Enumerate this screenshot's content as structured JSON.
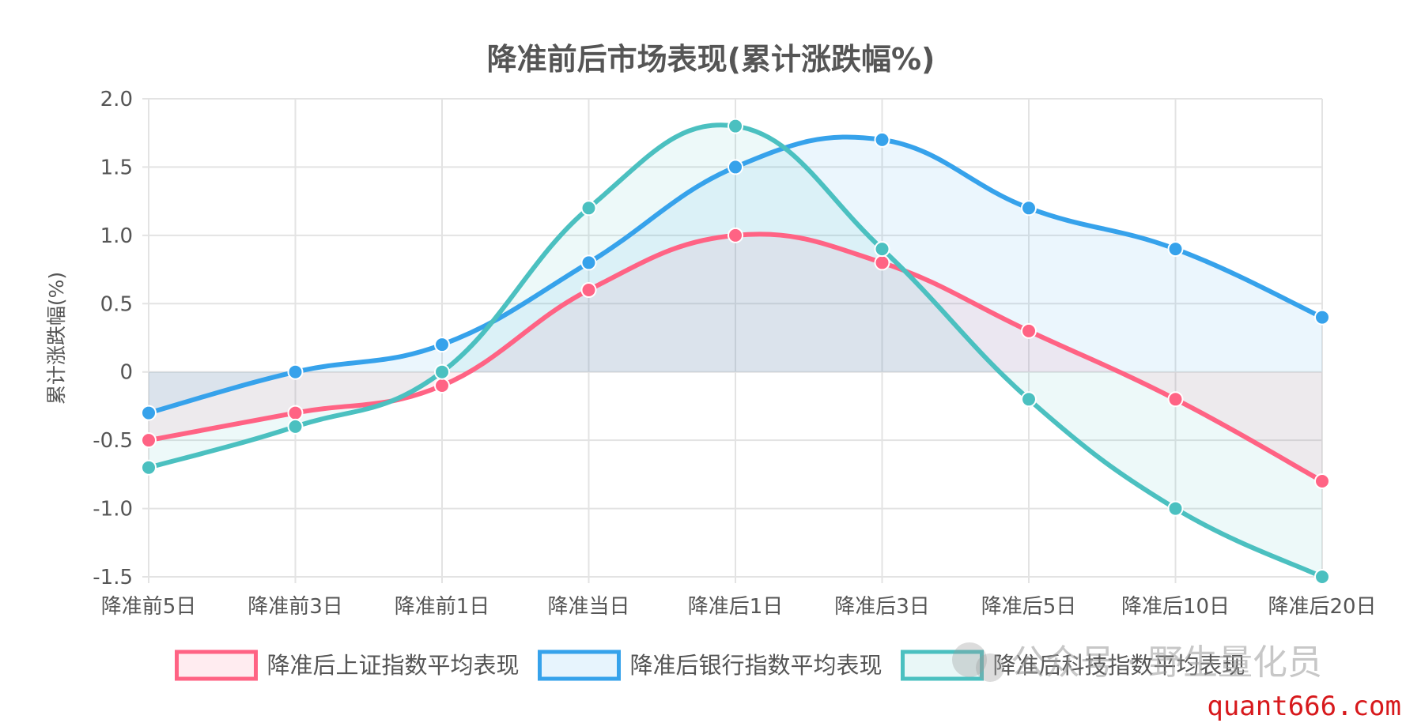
{
  "chart_data": {
    "type": "line",
    "title": "降准前后市场表现(累计涨跌幅%)",
    "ylabel": "累计涨跌幅(%)",
    "xlabel": "",
    "categories": [
      "降准前5日",
      "降准前3日",
      "降准前1日",
      "降准当日",
      "降准后1日",
      "降准后3日",
      "降准后5日",
      "降准后10日",
      "降准后20日"
    ],
    "ylim": [
      -1.5,
      2.0
    ],
    "yticks": [
      2.0,
      1.5,
      1.0,
      0.5,
      0,
      -0.5,
      -1.0,
      -1.5
    ],
    "ytick_labels": [
      "2.0",
      "1.5",
      "1.0",
      "0.5",
      "0",
      "-0.5",
      "-1.0",
      "-1.5"
    ],
    "grid": true,
    "fill": true,
    "smooth": true,
    "legend_position": "bottom",
    "series": [
      {
        "name": "降准后上证指数平均表现",
        "color": "#ff6384",
        "fill_color": "#ff6384",
        "values": [
          -0.5,
          -0.3,
          -0.1,
          0.6,
          1.0,
          0.8,
          0.3,
          -0.2,
          -0.8
        ]
      },
      {
        "name": "降准后银行指数平均表现",
        "color": "#36a2eb",
        "fill_color": "#36a2eb",
        "values": [
          -0.3,
          0.0,
          0.2,
          0.8,
          1.5,
          1.7,
          1.2,
          0.9,
          0.4
        ]
      },
      {
        "name": "降准后科技指数平均表现",
        "color": "#4bc0c0",
        "fill_color": "#4bc0c0",
        "values": [
          -0.7,
          -0.4,
          0.0,
          1.2,
          1.8,
          0.9,
          -0.2,
          -1.0,
          -1.5
        ]
      }
    ]
  },
  "watermark": {
    "text": "公众号 · 野生量化员",
    "url": "quant666.com"
  }
}
